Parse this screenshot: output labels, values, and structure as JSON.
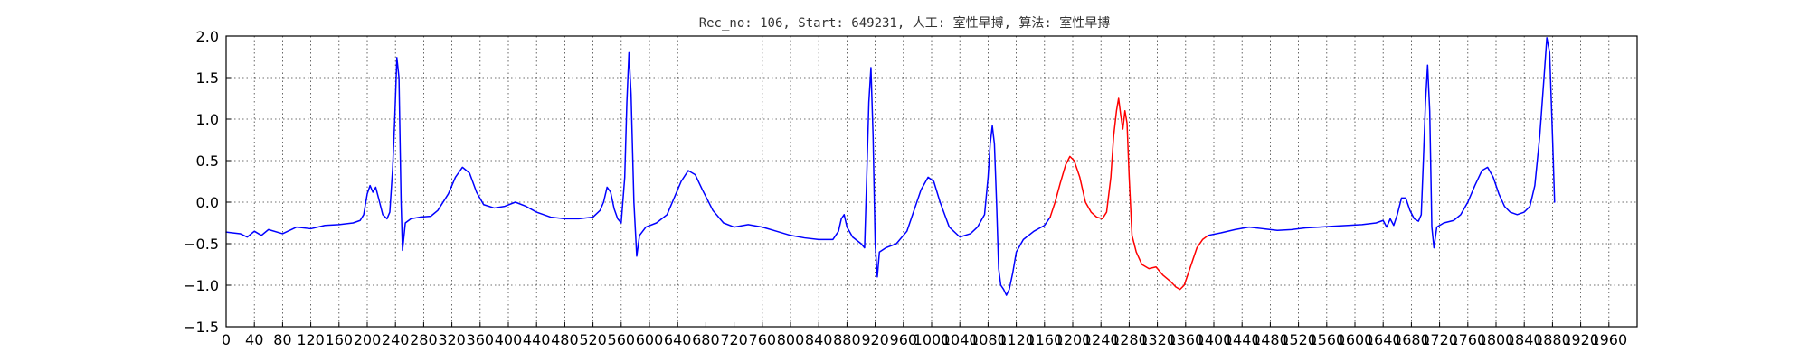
{
  "chart_data": {
    "type": "line",
    "title": "Rec_no: 106, Start: 649231, 人工: 室性早搏, 算法: 室性早搏",
    "xlabel": "",
    "ylabel": "",
    "xlim": [
      0,
      2000
    ],
    "ylim": [
      -1.5,
      2.0
    ],
    "grid": true,
    "x_ticks": [
      0,
      40,
      80,
      120,
      160,
      200,
      240,
      280,
      320,
      360,
      400,
      440,
      480,
      520,
      560,
      600,
      640,
      680,
      720,
      760,
      800,
      840,
      880,
      920,
      960,
      1000,
      1040,
      1080,
      1120,
      1160,
      1200,
      1240,
      1280,
      1320,
      1360,
      1400,
      1440,
      1480,
      1520,
      1560,
      1600,
      1640,
      1680,
      1720,
      1760,
      1800,
      1840,
      1880,
      1920,
      1960
    ],
    "x_tick_labels": [
      "0",
      "40",
      "80",
      "120",
      "160",
      "200",
      "240",
      "280",
      "320",
      "360",
      "400",
      "440",
      "480",
      "520",
      "560",
      "600",
      "640",
      "680",
      "720",
      "760",
      "800",
      "840",
      "880",
      "920",
      "960",
      "1000",
      "1040",
      "1080",
      "1120",
      "1160",
      "1200",
      "1240",
      "1280",
      "1320",
      "1360",
      "1400",
      "1440",
      "1480",
      "1520",
      "1560",
      "1600",
      "1640",
      "1680",
      "1720",
      "1760",
      "1800",
      "1840",
      "1880",
      "1920",
      "1960"
    ],
    "y_ticks": [
      -1.5,
      -1.0,
      -0.5,
      0.0,
      0.5,
      1.0,
      1.5,
      2.0
    ],
    "y_tick_labels": [
      "−1.5",
      "−1.0",
      "−0.5",
      "0.0",
      "0.5",
      "1.0",
      "1.5",
      "2.0"
    ],
    "series": [
      {
        "color": "#0000ff",
        "points": [
          [
            0,
            -0.36
          ],
          [
            20,
            -0.38
          ],
          [
            30,
            -0.42
          ],
          [
            40,
            -0.35
          ],
          [
            50,
            -0.4
          ],
          [
            60,
            -0.33
          ],
          [
            80,
            -0.38
          ],
          [
            100,
            -0.3
          ],
          [
            120,
            -0.32
          ],
          [
            140,
            -0.28
          ],
          [
            160,
            -0.27
          ],
          [
            180,
            -0.25
          ],
          [
            190,
            -0.22
          ],
          [
            195,
            -0.15
          ],
          [
            200,
            0.1
          ],
          [
            204,
            0.2
          ],
          [
            208,
            0.12
          ],
          [
            212,
            0.18
          ],
          [
            216,
            0.05
          ],
          [
            222,
            -0.15
          ],
          [
            228,
            -0.2
          ],
          [
            232,
            -0.12
          ],
          [
            236,
            0.4
          ],
          [
            239,
            1.0
          ],
          [
            242,
            1.74
          ],
          [
            245,
            1.5
          ],
          [
            248,
            0.0
          ],
          [
            250,
            -0.58
          ],
          [
            254,
            -0.25
          ],
          [
            262,
            -0.2
          ],
          [
            275,
            -0.18
          ],
          [
            290,
            -0.17
          ],
          [
            300,
            -0.1
          ],
          [
            315,
            0.1
          ],
          [
            325,
            0.3
          ],
          [
            335,
            0.42
          ],
          [
            345,
            0.35
          ],
          [
            355,
            0.12
          ],
          [
            365,
            -0.03
          ],
          [
            380,
            -0.07
          ],
          [
            395,
            -0.05
          ],
          [
            410,
            0.0
          ],
          [
            425,
            -0.05
          ],
          [
            440,
            -0.12
          ],
          [
            460,
            -0.18
          ],
          [
            480,
            -0.2
          ],
          [
            500,
            -0.2
          ],
          [
            520,
            -0.18
          ],
          [
            530,
            -0.1
          ],
          [
            535,
            0.0
          ],
          [
            540,
            0.18
          ],
          [
            545,
            0.12
          ],
          [
            550,
            -0.08
          ],
          [
            555,
            -0.2
          ],
          [
            560,
            -0.25
          ],
          [
            565,
            0.3
          ],
          [
            568,
            1.2
          ],
          [
            571,
            1.8
          ],
          [
            574,
            1.3
          ],
          [
            578,
            0.0
          ],
          [
            582,
            -0.65
          ],
          [
            586,
            -0.4
          ],
          [
            595,
            -0.3
          ],
          [
            610,
            -0.25
          ],
          [
            625,
            -0.15
          ],
          [
            635,
            0.05
          ],
          [
            645,
            0.25
          ],
          [
            655,
            0.38
          ],
          [
            665,
            0.33
          ],
          [
            675,
            0.15
          ],
          [
            690,
            -0.1
          ],
          [
            705,
            -0.25
          ],
          [
            720,
            -0.3
          ],
          [
            740,
            -0.27
          ],
          [
            760,
            -0.3
          ],
          [
            780,
            -0.35
          ],
          [
            800,
            -0.4
          ],
          [
            820,
            -0.43
          ],
          [
            840,
            -0.45
          ],
          [
            860,
            -0.45
          ],
          [
            868,
            -0.35
          ],
          [
            872,
            -0.2
          ],
          [
            876,
            -0.15
          ],
          [
            880,
            -0.3
          ],
          [
            888,
            -0.42
          ],
          [
            900,
            -0.5
          ],
          [
            905,
            -0.55
          ],
          [
            908,
            0.3
          ],
          [
            911,
            1.2
          ],
          [
            914,
            1.62
          ],
          [
            917,
            0.8
          ],
          [
            920,
            -0.5
          ],
          [
            923,
            -0.9
          ],
          [
            926,
            -0.6
          ],
          [
            935,
            -0.55
          ],
          [
            950,
            -0.5
          ],
          [
            965,
            -0.35
          ],
          [
            975,
            -0.1
          ],
          [
            985,
            0.15
          ],
          [
            995,
            0.3
          ],
          [
            1003,
            0.25
          ],
          [
            1012,
            0.0
          ],
          [
            1025,
            -0.3
          ],
          [
            1040,
            -0.42
          ],
          [
            1055,
            -0.38
          ],
          [
            1065,
            -0.3
          ],
          [
            1075,
            -0.15
          ],
          [
            1080,
            0.3
          ],
          [
            1083,
            0.7
          ],
          [
            1086,
            0.92
          ],
          [
            1089,
            0.7
          ],
          [
            1092,
            0.0
          ],
          [
            1095,
            -0.8
          ],
          [
            1098,
            -1.0
          ],
          [
            1102,
            -1.05
          ],
          [
            1106,
            -1.12
          ],
          [
            1110,
            -1.05
          ],
          [
            1115,
            -0.85
          ],
          [
            1120,
            -0.6
          ],
          [
            1130,
            -0.45
          ],
          [
            1145,
            -0.35
          ],
          [
            1160,
            -0.28
          ],
          [
            1168,
            -0.18
          ]
        ]
      },
      {
        "color": "#ff0000",
        "points": [
          [
            1168,
            -0.18
          ],
          [
            1175,
            0.0
          ],
          [
            1182,
            0.22
          ],
          [
            1190,
            0.45
          ],
          [
            1196,
            0.55
          ],
          [
            1202,
            0.5
          ],
          [
            1210,
            0.3
          ],
          [
            1218,
            0.0
          ],
          [
            1226,
            -0.12
          ],
          [
            1234,
            -0.18
          ],
          [
            1242,
            -0.2
          ],
          [
            1248,
            -0.12
          ],
          [
            1254,
            0.3
          ],
          [
            1258,
            0.8
          ],
          [
            1262,
            1.1
          ],
          [
            1265,
            1.25
          ],
          [
            1268,
            1.05
          ],
          [
            1271,
            0.88
          ],
          [
            1274,
            1.1
          ],
          [
            1277,
            0.95
          ],
          [
            1280,
            0.3
          ],
          [
            1284,
            -0.4
          ],
          [
            1290,
            -0.6
          ],
          [
            1298,
            -0.75
          ],
          [
            1308,
            -0.8
          ],
          [
            1318,
            -0.78
          ],
          [
            1328,
            -0.88
          ],
          [
            1338,
            -0.95
          ],
          [
            1346,
            -1.02
          ],
          [
            1352,
            -1.05
          ],
          [
            1358,
            -1.0
          ],
          [
            1364,
            -0.85
          ],
          [
            1370,
            -0.7
          ],
          [
            1376,
            -0.55
          ],
          [
            1384,
            -0.45
          ],
          [
            1392,
            -0.4
          ]
        ]
      },
      {
        "color": "#0000ff",
        "points": [
          [
            1392,
            -0.4
          ],
          [
            1410,
            -0.37
          ],
          [
            1430,
            -0.33
          ],
          [
            1450,
            -0.3
          ],
          [
            1470,
            -0.32
          ],
          [
            1490,
            -0.34
          ],
          [
            1510,
            -0.33
          ],
          [
            1530,
            -0.31
          ],
          [
            1550,
            -0.3
          ],
          [
            1570,
            -0.29
          ],
          [
            1590,
            -0.28
          ],
          [
            1610,
            -0.27
          ],
          [
            1630,
            -0.25
          ],
          [
            1640,
            -0.22
          ],
          [
            1645,
            -0.3
          ],
          [
            1650,
            -0.2
          ],
          [
            1655,
            -0.28
          ],
          [
            1660,
            -0.15
          ],
          [
            1666,
            0.05
          ],
          [
            1672,
            0.05
          ],
          [
            1678,
            -0.1
          ],
          [
            1684,
            -0.2
          ],
          [
            1690,
            -0.23
          ],
          [
            1694,
            -0.15
          ],
          [
            1697,
            0.5
          ],
          [
            1700,
            1.2
          ],
          [
            1703,
            1.65
          ],
          [
            1706,
            1.1
          ],
          [
            1709,
            -0.3
          ],
          [
            1712,
            -0.55
          ],
          [
            1716,
            -0.3
          ],
          [
            1726,
            -0.25
          ],
          [
            1740,
            -0.22
          ],
          [
            1750,
            -0.15
          ],
          [
            1760,
            0.0
          ],
          [
            1770,
            0.2
          ],
          [
            1780,
            0.38
          ],
          [
            1788,
            0.42
          ],
          [
            1796,
            0.3
          ],
          [
            1804,
            0.1
          ],
          [
            1812,
            -0.05
          ],
          [
            1820,
            -0.12
          ],
          [
            1830,
            -0.15
          ],
          [
            1840,
            -0.12
          ],
          [
            1848,
            -0.05
          ],
          [
            1855,
            0.2
          ],
          [
            1862,
            0.8
          ],
          [
            1868,
            1.5
          ],
          [
            1872,
            1.98
          ],
          [
            1876,
            1.8
          ],
          [
            1880,
            0.8
          ],
          [
            1883,
            0.0
          ]
        ]
      }
    ]
  }
}
